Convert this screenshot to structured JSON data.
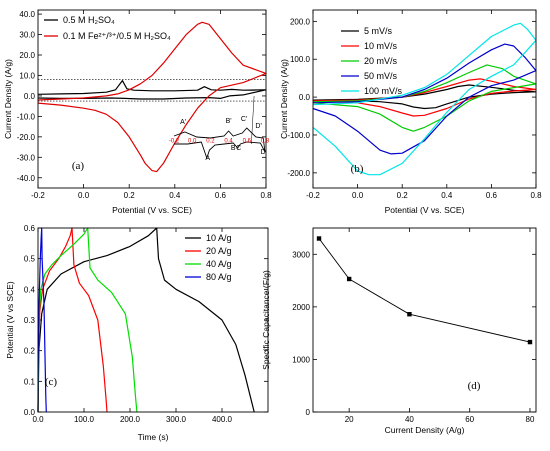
{
  "chart_data": [
    {
      "type": "line",
      "panel_label": "(a)",
      "xlabel": "Potential  (V vs. SCE)",
      "ylabel": "Current Density (A/g)",
      "xlim": [
        -0.2,
        0.8
      ],
      "ylim": [
        -45,
        42
      ],
      "xticks": [
        -0.2,
        0.0,
        0.2,
        0.4,
        0.6,
        0.8
      ],
      "yticks": [
        -40,
        -30,
        -20,
        -10,
        0,
        10,
        20,
        30,
        40
      ],
      "legend_position": "top-left",
      "series": [
        {
          "name": "0.5 M H₂SO₄",
          "color": "#000000",
          "x": [
            -0.2,
            -0.1,
            0.0,
            0.1,
            0.14,
            0.17,
            0.19,
            0.22,
            0.3,
            0.4,
            0.5,
            0.53,
            0.56,
            0.6,
            0.65,
            0.7,
            0.8,
            0.7,
            0.64,
            0.6,
            0.55,
            0.45,
            0.35,
            0.25,
            0.18,
            0.12,
            0.0,
            -0.1,
            -0.2
          ],
          "y": [
            0.8,
            1.0,
            1.2,
            1.8,
            3.0,
            7.5,
            3.5,
            2.8,
            2.5,
            2.5,
            2.8,
            4.5,
            3.0,
            2.8,
            3.2,
            2.8,
            3.0,
            0.5,
            0.0,
            -1.2,
            -0.8,
            -1.0,
            -1.5,
            -1.5,
            -1.2,
            -1.0,
            -1.2,
            -1.2,
            -1.0
          ]
        },
        {
          "name": "0.1 M Fe²⁺/³⁺/0.5 M H₂SO₄",
          "color": "#e00000",
          "x": [
            -0.2,
            -0.1,
            0.0,
            0.1,
            0.15,
            0.2,
            0.25,
            0.3,
            0.35,
            0.4,
            0.45,
            0.5,
            0.52,
            0.55,
            0.6,
            0.65,
            0.7,
            0.8,
            0.7,
            0.6,
            0.55,
            0.5,
            0.45,
            0.4,
            0.35,
            0.32,
            0.3,
            0.27,
            0.25,
            0.2,
            0.15,
            0.1,
            0.05,
            0.0,
            -0.1,
            -0.2
          ],
          "y": [
            -2.0,
            -1.5,
            -1.0,
            0.0,
            1.0,
            3.0,
            6.0,
            10.0,
            16.0,
            23.0,
            30.0,
            35.0,
            36.0,
            35.0,
            28.0,
            21.0,
            15.0,
            11.0,
            6.5,
            4.0,
            0.0,
            -6.0,
            -14.0,
            -23.0,
            -33.0,
            -37.0,
            -36.5,
            -33.0,
            -29.0,
            -20.0,
            -13.0,
            -9.0,
            -7.0,
            -6.0,
            -4.5,
            -3.5
          ]
        }
      ],
      "reference_lines_y": [
        8,
        -2.5
      ],
      "inset": {
        "xticks": [
          "-0.2",
          "0.0",
          "0.2",
          "0.4",
          "0.6",
          "0.8"
        ],
        "peak_labels": [
          "A",
          "B",
          "C",
          "D",
          "A'",
          "B'",
          "C'",
          "D'"
        ]
      }
    },
    {
      "type": "line",
      "panel_label": "(b)",
      "xlabel": "Potential  (V vs. SCE)",
      "ylabel": "Current Density (A/g)",
      "xlim": [
        -0.2,
        0.8
      ],
      "ylim": [
        -240,
        230
      ],
      "xticks": [
        -0.2,
        0.0,
        0.2,
        0.4,
        0.6,
        0.8
      ],
      "yticks": [
        -200,
        -100,
        0,
        100,
        200
      ],
      "legend_position": "top-left",
      "series": [
        {
          "name": "5 mV/s",
          "color": "#000000",
          "x": [
            -0.2,
            0.0,
            0.2,
            0.3,
            0.4,
            0.45,
            0.5,
            0.6,
            0.7,
            0.8,
            0.7,
            0.6,
            0.5,
            0.4,
            0.35,
            0.3,
            0.25,
            0.2,
            0.1,
            0.0,
            -0.2
          ],
          "y": [
            -8,
            -6,
            0,
            8,
            20,
            28,
            32,
            26,
            18,
            14,
            12,
            8,
            0,
            -18,
            -28,
            -30,
            -26,
            -18,
            -12,
            -10,
            -8
          ]
        },
        {
          "name": "10 mV/s",
          "color": "#ff0000",
          "x": [
            -0.2,
            0.0,
            0.2,
            0.3,
            0.4,
            0.5,
            0.55,
            0.6,
            0.7,
            0.8,
            0.7,
            0.6,
            0.5,
            0.4,
            0.3,
            0.25,
            0.2,
            0.1,
            0.0,
            -0.2
          ],
          "y": [
            -10,
            -8,
            0,
            12,
            28,
            45,
            48,
            42,
            28,
            20,
            16,
            10,
            -5,
            -30,
            -48,
            -50,
            -42,
            -25,
            -15,
            -10
          ]
        },
        {
          "name": "20 mV/s",
          "color": "#00cc00",
          "x": [
            -0.2,
            0.0,
            0.2,
            0.3,
            0.4,
            0.5,
            0.58,
            0.65,
            0.7,
            0.8,
            0.7,
            0.6,
            0.5,
            0.4,
            0.3,
            0.25,
            0.2,
            0.1,
            0.0,
            -0.2
          ],
          "y": [
            -12,
            -10,
            0,
            15,
            38,
            65,
            85,
            75,
            55,
            35,
            25,
            15,
            -10,
            -50,
            -80,
            -90,
            -80,
            -45,
            -25,
            -15
          ]
        },
        {
          "name": "50 mV/s",
          "color": "#0000cc",
          "x": [
            -0.2,
            0.0,
            0.2,
            0.3,
            0.4,
            0.5,
            0.6,
            0.66,
            0.7,
            0.75,
            0.8,
            0.7,
            0.6,
            0.5,
            0.4,
            0.3,
            0.2,
            0.15,
            0.1,
            0.0,
            -0.1,
            -0.2
          ],
          "y": [
            -15,
            -12,
            0,
            20,
            50,
            90,
            125,
            140,
            135,
            105,
            70,
            45,
            30,
            0,
            -50,
            -115,
            -148,
            -150,
            -140,
            -90,
            -50,
            -30
          ]
        },
        {
          "name": "100 mV/s",
          "color": "#00e5e5",
          "x": [
            -0.2,
            0.0,
            0.2,
            0.3,
            0.4,
            0.5,
            0.6,
            0.7,
            0.73,
            0.76,
            0.8,
            0.7,
            0.6,
            0.5,
            0.4,
            0.3,
            0.2,
            0.1,
            0.05,
            0.0,
            -0.1,
            -0.2
          ],
          "y": [
            -20,
            -15,
            5,
            25,
            60,
            110,
            160,
            190,
            195,
            180,
            150,
            85,
            55,
            20,
            -40,
            -110,
            -175,
            -205,
            -205,
            -195,
            -130,
            -80
          ]
        }
      ]
    },
    {
      "type": "line",
      "panel_label": "(c)",
      "xlabel": "Time (s)",
      "ylabel": "Potential (V vs SCE)",
      "xlim": [
        0,
        500
      ],
      "ylim": [
        0,
        0.6
      ],
      "xticks": [
        0,
        100,
        200,
        300,
        400
      ],
      "yticks": [
        0.0,
        0.1,
        0.2,
        0.3,
        0.4,
        0.5,
        0.6
      ],
      "legend_position": "top-right",
      "series": [
        {
          "name": "10 A/g",
          "color": "#000000",
          "x": [
            0,
            2,
            8,
            20,
            50,
            100,
            150,
            200,
            240,
            258,
            262,
            275,
            300,
            350,
            400,
            430,
            450,
            465,
            470
          ],
          "y": [
            0.0,
            0.2,
            0.32,
            0.4,
            0.45,
            0.49,
            0.51,
            0.54,
            0.575,
            0.6,
            0.5,
            0.43,
            0.4,
            0.36,
            0.3,
            0.22,
            0.12,
            0.03,
            0.0
          ]
        },
        {
          "name": "20 A/g",
          "color": "#ff0000",
          "x": [
            0,
            1,
            4,
            10,
            25,
            45,
            60,
            70,
            74,
            78,
            90,
            110,
            130,
            142,
            148,
            150
          ],
          "y": [
            0.0,
            0.2,
            0.33,
            0.4,
            0.46,
            0.5,
            0.54,
            0.575,
            0.6,
            0.48,
            0.42,
            0.38,
            0.3,
            0.15,
            0.04,
            0.0
          ]
        },
        {
          "name": "40 A/g",
          "color": "#00dd00",
          "x": [
            0,
            1,
            3,
            6,
            15,
            30,
            50,
            80,
            100,
            108,
            113,
            130,
            160,
            190,
            205,
            212,
            215
          ],
          "y": [
            0.0,
            0.2,
            0.33,
            0.4,
            0.45,
            0.48,
            0.51,
            0.55,
            0.58,
            0.6,
            0.47,
            0.43,
            0.39,
            0.32,
            0.18,
            0.05,
            0.0
          ]
        },
        {
          "name": "80 A/g",
          "color": "#0000dd",
          "x": [
            0,
            0.5,
            1.5,
            3,
            5,
            7,
            8,
            9,
            11,
            13,
            15,
            17,
            18
          ],
          "y": [
            0.0,
            0.15,
            0.3,
            0.4,
            0.5,
            0.57,
            0.6,
            0.5,
            0.42,
            0.35,
            0.2,
            0.05,
            0.0
          ]
        }
      ]
    },
    {
      "type": "scatter",
      "panel_label": "(d)",
      "xlabel": "Current Density (A/g)",
      "ylabel": "Specific Capacitance (F/g)",
      "xlim": [
        8,
        82
      ],
      "ylim": [
        0,
        3500
      ],
      "xticks": [
        20,
        40,
        60,
        80
      ],
      "yticks": [
        0,
        1000,
        2000,
        3000
      ],
      "series": [
        {
          "name": "",
          "color": "#000000",
          "x": [
            10,
            20,
            40,
            80
          ],
          "y": [
            3300,
            2530,
            1860,
            1330
          ]
        }
      ]
    }
  ]
}
